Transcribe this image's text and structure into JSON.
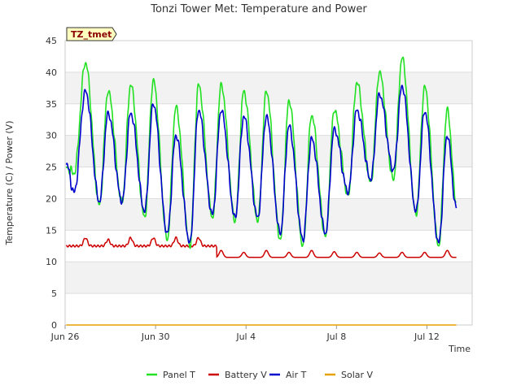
{
  "chart_data": {
    "type": "line",
    "title": "Tonzi Tower Met: Temperature and Power",
    "badge": "TZ_tmet",
    "xlabel": "Time",
    "ylabel": "Temperature (C) / Power (V)",
    "xlim": [
      0,
      18
    ],
    "ylim": [
      0,
      45
    ],
    "yticks": [
      0,
      5,
      10,
      15,
      20,
      25,
      30,
      35,
      40,
      45
    ],
    "xticks": [
      {
        "value": 0,
        "label": "Jun 26"
      },
      {
        "value": 4,
        "label": "Jun 30"
      },
      {
        "value": 8,
        "label": "Jul 4"
      },
      {
        "value": 12,
        "label": "Jul 8"
      },
      {
        "value": 16,
        "label": "Jul 12"
      }
    ],
    "daily_extremes": {
      "days": [
        0.9,
        1.9,
        2.9,
        3.9,
        4.9,
        5.9,
        6.9,
        7.9,
        8.9,
        9.9,
        10.9,
        11.9,
        12.9,
        13.9,
        14.9,
        15.9,
        16.9
      ],
      "panel_max": [
        41.5,
        37.0,
        38.0,
        38.7,
        34.5,
        38.0,
        38.0,
        37.0,
        37.0,
        35.5,
        33.2,
        34.0,
        38.4,
        40.0,
        42.3,
        37.7,
        34.1
      ],
      "panel_min": [
        24.0,
        19.0,
        19.5,
        17.0,
        13.5,
        12.5,
        17.0,
        16.5,
        16.5,
        13.5,
        12.5,
        14.0,
        20.5,
        22.5,
        23.0,
        17.5,
        12.5
      ],
      "air_max": [
        37.0,
        33.5,
        33.5,
        35.0,
        30.0,
        34.0,
        34.0,
        33.0,
        33.0,
        31.5,
        29.5,
        31.0,
        34.0,
        36.5,
        37.8,
        33.8,
        30.0
      ],
      "air_min": [
        21.0,
        19.5,
        19.5,
        18.0,
        14.5,
        13.0,
        17.5,
        17.0,
        17.0,
        14.5,
        13.5,
        14.5,
        21.0,
        23.0,
        24.5,
        18.0,
        13.0
      ],
      "battery_peak": [
        13.8,
        13.5,
        13.8,
        13.8,
        13.8,
        13.8,
        11.8,
        11.5,
        11.8,
        11.5,
        11.8,
        11.6,
        11.5,
        11.4,
        11.5,
        11.5,
        11.8
      ]
    },
    "series": [
      {
        "name": "Panel T",
        "color": "#22e022"
      },
      {
        "name": "Battery V",
        "color": "#cc0000"
      },
      {
        "name": "Air T",
        "color": "#0000cc"
      },
      {
        "name": "Solar V",
        "color": "#e6a000"
      }
    ],
    "solar_value": 0,
    "battery_base_before": 12.5,
    "battery_base_after": 10.7,
    "battery_drop_day": 6.7,
    "x_start": 0.05,
    "x_end": 17.3,
    "start_values": {
      "panel": 25.0,
      "air": 25.5
    }
  }
}
